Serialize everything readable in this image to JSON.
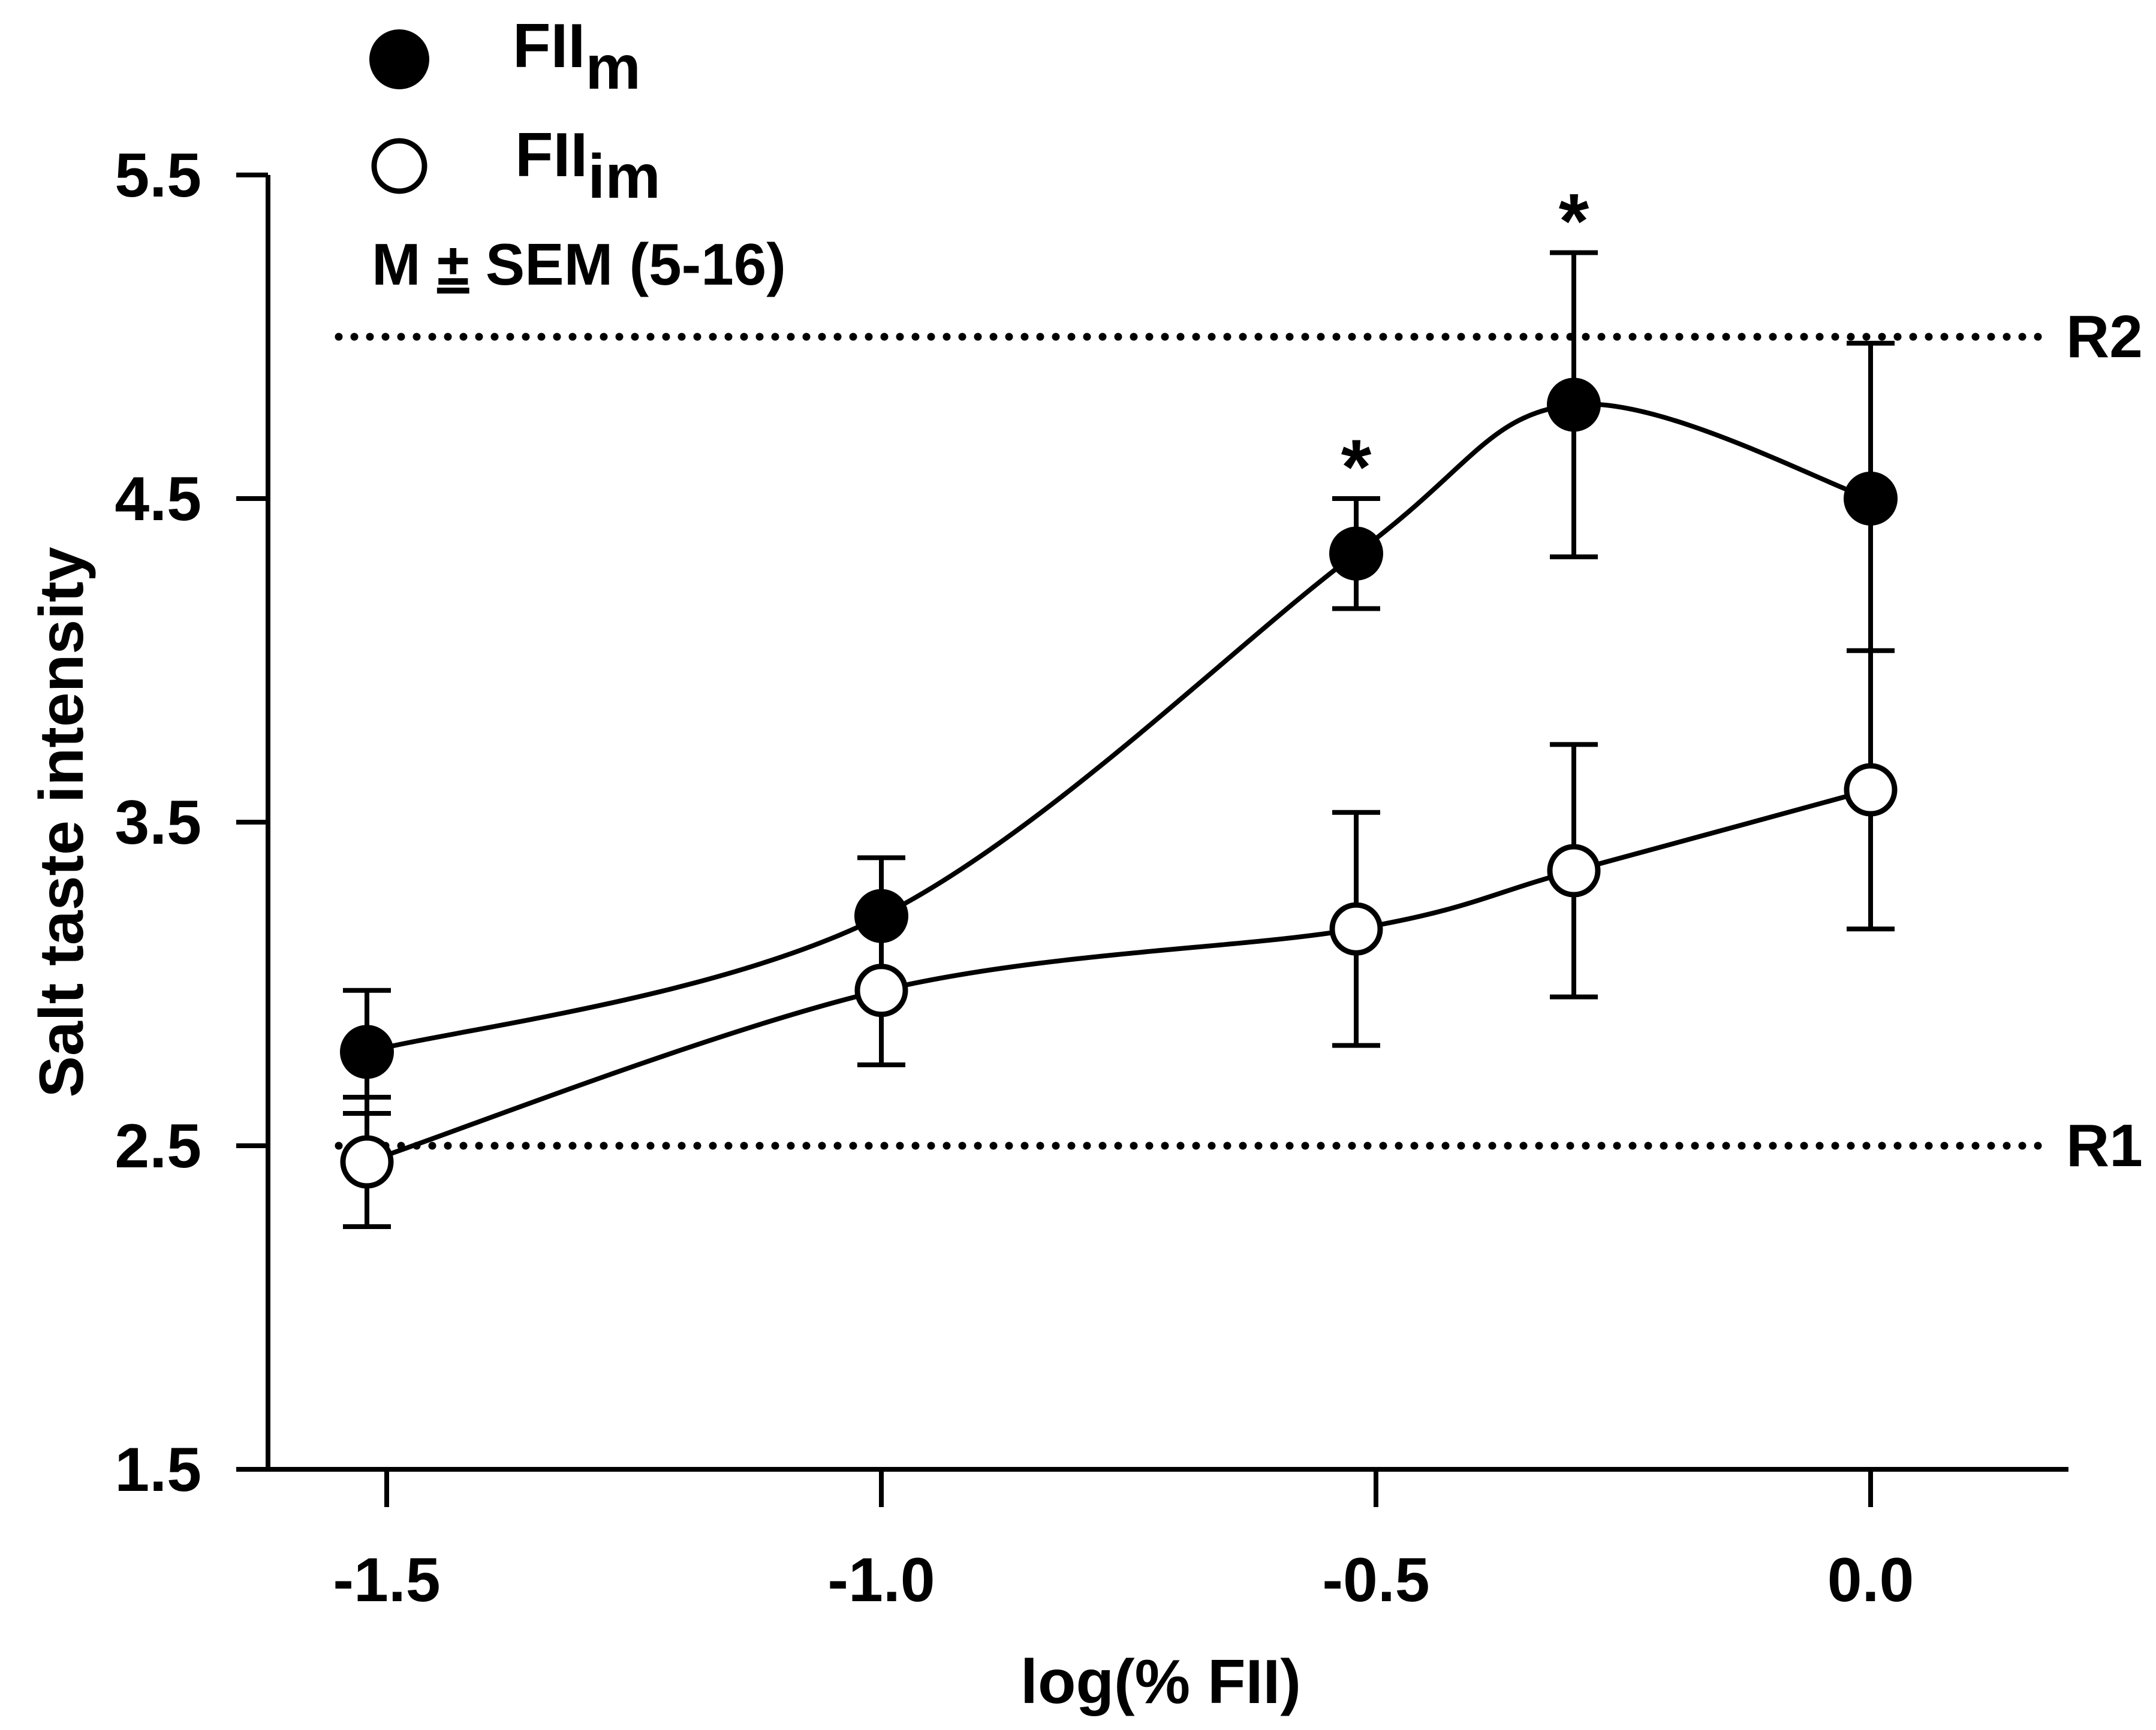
{
  "chart_data": {
    "type": "line",
    "title": "",
    "xlabel": "log(% FII)",
    "ylabel": "Salt taste intensity",
    "xlim": [
      -1.62,
      0.2
    ],
    "ylim": [
      1.5,
      5.5
    ],
    "x_ticks": [
      -1.5,
      -1.0,
      -0.5,
      0.0
    ],
    "x_tick_labels": [
      "-1.5",
      "-1.0",
      "-0.5",
      "0.0"
    ],
    "y_ticks": [
      1.5,
      2.5,
      3.5,
      4.5,
      5.5
    ],
    "y_tick_labels": [
      "1.5",
      "2.5",
      "3.5",
      "4.5",
      "5.5"
    ],
    "grid": false,
    "legend_position": "top-left",
    "annotation": {
      "prefix": "M ",
      "symbol": "±",
      "suffix": " SEM (5-16)"
    },
    "series": [
      {
        "name": "FIIm",
        "label_main": "FII",
        "label_sub": "m",
        "marker": "filled-circle",
        "color": "#000000",
        "x": [
          -1.52,
          -1.0,
          -0.52,
          -0.3,
          0.0
        ],
        "y": [
          2.79,
          3.21,
          4.33,
          4.79,
          4.5
        ],
        "err_upper": [
          0.19,
          0.18,
          0.17,
          0.47,
          0.48
        ],
        "err_lower": [
          0.19,
          0.18,
          0.17,
          0.47,
          0.48
        ],
        "cap_upper": [
          true,
          true,
          true,
          true,
          true
        ],
        "cap_lower": [
          true,
          false,
          true,
          true,
          false
        ]
      },
      {
        "name": "FIIim",
        "label_main": "FII",
        "label_sub": "im",
        "marker": "open-circle",
        "color": "#000000",
        "x": [
          -1.52,
          -1.0,
          -0.52,
          -0.3,
          0.0
        ],
        "y": [
          2.45,
          2.98,
          3.17,
          3.35,
          3.6
        ],
        "err_upper": [
          0.2,
          0.23,
          0.36,
          0.39,
          0.43
        ],
        "err_lower": [
          0.2,
          0.23,
          0.36,
          0.39,
          0.43
        ],
        "cap_upper": [
          true,
          false,
          true,
          true,
          true
        ],
        "cap_lower": [
          true,
          true,
          true,
          true,
          true
        ]
      }
    ],
    "reference_lines": [
      {
        "label": "R2",
        "y": 5.0,
        "style": "dotted"
      },
      {
        "label": "R1",
        "y": 2.5,
        "style": "dotted"
      }
    ],
    "significance_markers": [
      {
        "label": "*",
        "x": -0.52,
        "y": 4.5
      },
      {
        "label": "*",
        "x": -0.3,
        "y": 5.26
      }
    ]
  }
}
